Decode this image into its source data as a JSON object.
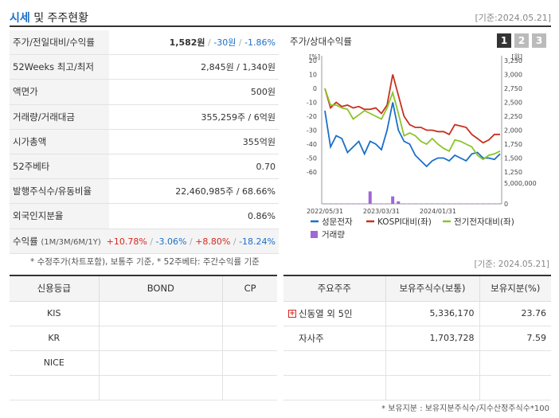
{
  "header": {
    "title_main": "시세",
    "title_rest": " 및 주주현황",
    "date": "[기준:2024.05.21]"
  },
  "summary": {
    "rows": [
      {
        "label": "주가/전일대비/수익률",
        "price": "1,582원",
        "change": "-30원",
        "rate": "-1.86%"
      },
      {
        "label": "52Weeks 최고/최저",
        "value": "2,845원 / 1,340원"
      },
      {
        "label": "액면가",
        "value": "500원"
      },
      {
        "label": "거래량/거래대금",
        "value": "355,259주 / 6억원"
      },
      {
        "label": "시가총액",
        "value": "355억원"
      },
      {
        "label": "52주베타",
        "value": "0.70"
      },
      {
        "label": "발행주식수/유동비율",
        "value": "22,460,985주 / 68.66%"
      },
      {
        "label": "외국인지분율",
        "value": "0.86%"
      }
    ],
    "returns": {
      "label": "수익률",
      "periods": "(1M/3M/6M/1Y)",
      "r1m": "+10.78%",
      "r3m": "-3.06%",
      "r6m": "+8.80%",
      "r1y": "-18.24%"
    },
    "note": "* 수정주가(차트포함), 보통주 기준, * 52주베타: 주간수익률 기준"
  },
  "chart_panel": {
    "title": "주가/상대수익률",
    "pages": [
      "1",
      "2",
      "3"
    ]
  },
  "chart_data": {
    "type": "line",
    "left_axis_unit": "[%]",
    "right_axis_unit": "[원]",
    "left_ylim": [
      -60,
      20
    ],
    "left_ticks": [
      "20",
      "10",
      "0",
      "-10",
      "-20",
      "-30",
      "-40",
      "-50",
      "-60"
    ],
    "right_ylim": [
      1250,
      3250
    ],
    "right_ticks": [
      "3,250",
      "3,000",
      "2,750",
      "2,500",
      "2,250",
      "2,000",
      "1,750",
      "1,500",
      "1,250"
    ],
    "volume_tick_labels": [
      "5,000,000",
      "0"
    ],
    "volume_max": 5000000,
    "x_tick_labels": [
      "2022/05/31",
      "2023/03/31",
      "2024/01/31"
    ],
    "x_tick_positions": [
      1,
      11,
      21
    ],
    "x": [
      1,
      2,
      3,
      4,
      5,
      6,
      7,
      8,
      9,
      10,
      11,
      12,
      13,
      14,
      15,
      16,
      17,
      18,
      19,
      20,
      21,
      22,
      23,
      24,
      25,
      26,
      27,
      28,
      29,
      30,
      31,
      32
    ],
    "series": [
      {
        "name": "성문전자",
        "color": "#1a6fc9",
        "axis": "left",
        "values": [
          -16,
          -42,
          -34,
          -36,
          -46,
          -42,
          -38,
          -47,
          -38,
          -40,
          -44,
          -30,
          -10,
          -30,
          -38,
          -40,
          -48,
          -52,
          -56,
          -52,
          -50,
          -50,
          -52,
          -48,
          -50,
          -52,
          -47,
          -46,
          -50,
          -50,
          -51,
          -47
        ]
      },
      {
        "name": "KOSPI대비(좌)",
        "color": "#c7301e",
        "axis": "left",
        "values": [
          0,
          -14,
          -10,
          -13,
          -12,
          -14,
          -13,
          -15,
          -15,
          -14,
          -18,
          -12,
          10,
          -5,
          -20,
          -26,
          -28,
          -28,
          -30,
          -30,
          -31,
          -31,
          -33,
          -26,
          -27,
          -28,
          -33,
          -36,
          -39,
          -37,
          -33,
          -33
        ]
      },
      {
        "name": "전기전자대비(좌)",
        "color": "#8cc42a",
        "axis": "left",
        "values": [
          0,
          -12,
          -12,
          -14,
          -15,
          -22,
          -19,
          -16,
          -18,
          -20,
          -22,
          -14,
          -3,
          -18,
          -34,
          -32,
          -34,
          -38,
          -40,
          -36,
          -40,
          -43,
          -45,
          -37,
          -38,
          -40,
          -42,
          -48,
          -51,
          -48,
          -47,
          -45
        ]
      },
      {
        "name": "거래량",
        "color": "#a066d6",
        "axis": "volume",
        "values": [
          60000,
          30000,
          20000,
          20000,
          30000,
          20000,
          20000,
          20000,
          3000000,
          40000,
          30000,
          20000,
          1800000,
          600000,
          50000,
          40000,
          40000,
          30000,
          100000,
          80000,
          60000,
          40000,
          30000,
          50000,
          40000,
          30000,
          40000,
          30000,
          20000,
          30000,
          80000,
          100000
        ]
      }
    ]
  },
  "chart_date": "[기준: 2024.05.21]",
  "credit": {
    "headers": [
      "신용등급",
      "BOND",
      "CP"
    ],
    "rows": [
      [
        "KIS",
        "",
        ""
      ],
      [
        "KR",
        "",
        ""
      ],
      [
        "NICE",
        "",
        ""
      ],
      [
        "",
        "",
        ""
      ]
    ]
  },
  "holders": {
    "headers": [
      "주요주주",
      "보유주식수(보통)",
      "보유지분(%)"
    ],
    "rows": [
      {
        "name": "신동열 외 5인",
        "shares": "5,336,170",
        "pct": "23.76",
        "expand": "+"
      },
      {
        "name": "자사주",
        "shares": "1,703,728",
        "pct": "7.59",
        "expand": ""
      },
      {
        "name": "",
        "shares": "",
        "pct": "",
        "expand": ""
      },
      {
        "name": "",
        "shares": "",
        "pct": "",
        "expand": ""
      }
    ],
    "note": "* 보유지분 : 보유지분주식수/지수산정주식수*100"
  }
}
